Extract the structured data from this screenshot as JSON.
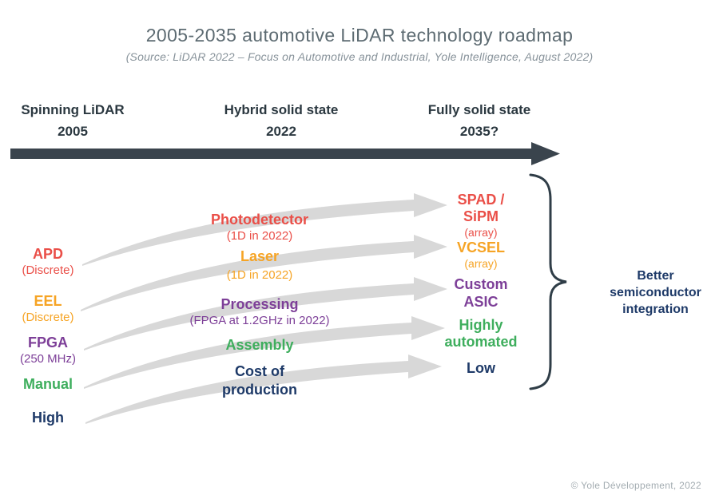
{
  "title": "2005-2035 automotive LiDAR technology roadmap",
  "subtitle": "(Source: LiDAR 2022 – Focus on Automotive and Industrial, Yole Intelligence, August 2022)",
  "timeline": {
    "stages": [
      {
        "label": "Spinning LiDAR",
        "year": "2005"
      },
      {
        "label": "Hybrid solid state",
        "year": "2022"
      },
      {
        "label": "Fully solid state",
        "year": "2035?"
      }
    ]
  },
  "rows": [
    {
      "left": "APD",
      "left_note": "(Discrete)",
      "mid": "Photodetector",
      "mid_note": "(1D in 2022)",
      "right": "SPAD /\nSiPM",
      "right_note": "(array)",
      "color": "#ea4f48"
    },
    {
      "left": "EEL",
      "left_note": "(Discrete)",
      "mid": "Laser",
      "mid_note": "(1D in 2022)",
      "right": "VCSEL",
      "right_note": "(array)",
      "color": "#f6a425"
    },
    {
      "left": "FPGA",
      "left_note": "(250 MHz)",
      "mid": "Processing",
      "mid_note": "(FPGA at 1.2GHz in 2022)",
      "right": "Custom\nASIC",
      "color": "#7d3f98"
    },
    {
      "left": "Manual",
      "mid": "Assembly",
      "right": "Highly\nautomated",
      "color": "#3eae5d"
    },
    {
      "left": "High",
      "mid": "Cost of\nproduction",
      "right": "Low",
      "color": "#1e3a68"
    }
  ],
  "brace_label": "Better\nsemiconductor\nintegration",
  "footer": "© Yole Développement, 2022",
  "colors": {
    "red": "#ea4f48",
    "orange": "#f6a425",
    "purple": "#7d3f98",
    "green": "#3eae5d",
    "navy": "#1e3a68",
    "title_gray": "#5d6b72",
    "subtitle_gray": "#87929a",
    "header_dark": "#2b3840",
    "timeline_arrow": "#3a444d",
    "trend_arrow_gray": "#d8d8d8",
    "brace": "#2f3d47",
    "footer_gray": "#a3acb1"
  }
}
